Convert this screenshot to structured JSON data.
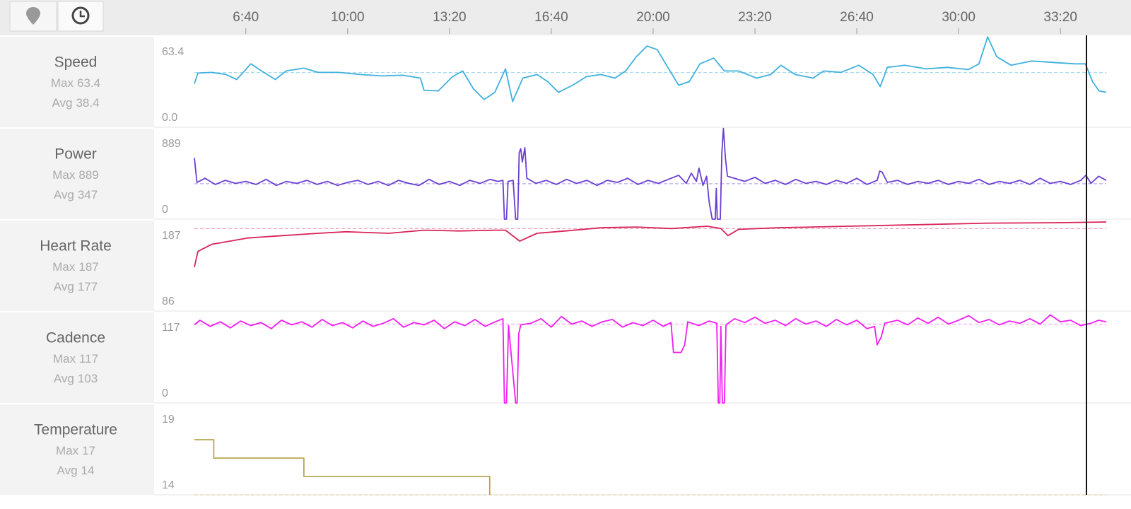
{
  "stat_labels": {
    "max": "Max",
    "avg": "Avg"
  },
  "x_axis": {
    "xlim": [
      299,
      2090
    ],
    "xticks": [
      {
        "value": 400,
        "label": "6:40"
      },
      {
        "value": 600,
        "label": "10:00"
      },
      {
        "value": 800,
        "label": "13:20"
      },
      {
        "value": 1000,
        "label": "16:40"
      },
      {
        "value": 1200,
        "label": "20:00"
      },
      {
        "value": 1400,
        "label": "23:20"
      },
      {
        "value": 1600,
        "label": "26:40"
      },
      {
        "value": 1800,
        "label": "30:00"
      },
      {
        "value": 2000,
        "label": "33:20"
      }
    ]
  },
  "chart_data": [
    {
      "type": "line",
      "title": "Speed",
      "max": 63.4,
      "avg": 38.4,
      "color": "#3fb0de",
      "ylim": [
        0,
        64.5
      ],
      "yticks": [
        {
          "value": 0,
          "label": "0.0"
        },
        63.4
      ],
      "x": [
        299,
        306,
        333,
        361,
        382,
        410,
        431,
        458,
        479,
        514,
        542,
        583,
        625,
        667,
        708,
        743,
        750,
        778,
        806,
        826,
        847,
        868,
        889,
        910,
        924,
        944,
        972,
        993,
        1014,
        1042,
        1069,
        1097,
        1125,
        1146,
        1167,
        1188,
        1208,
        1229,
        1250,
        1271,
        1292,
        1319,
        1340,
        1368,
        1403,
        1431,
        1451,
        1479,
        1514,
        1535,
        1569,
        1604,
        1632,
        1646,
        1660,
        1694,
        1736,
        1778,
        1819,
        1840,
        1857,
        1875,
        1903,
        1944,
        1986,
        2028,
        2049,
        2063,
        2076,
        2090
      ],
      "values": [
        30.5,
        38,
        38.5,
        37,
        33.5,
        44.5,
        39.5,
        33.5,
        39.5,
        41.5,
        38.5,
        38.5,
        37,
        36,
        36.5,
        34.5,
        26,
        25.5,
        35.5,
        39.5,
        27,
        19.5,
        24.5,
        41,
        18,
        34.5,
        37,
        32,
        24.5,
        29.5,
        35.5,
        37,
        34.5,
        39.5,
        49.5,
        57,
        54.5,
        42,
        29.5,
        32,
        44.5,
        48.5,
        39.5,
        39.5,
        34.5,
        37,
        43.5,
        37,
        34.5,
        39.5,
        38.5,
        43.5,
        37,
        28.5,
        42,
        43.5,
        41,
        42,
        40.5,
        44.5,
        63.4,
        49.5,
        43.5,
        46.5,
        45.5,
        44.5,
        44.5,
        32,
        25.5,
        24.5
      ]
    },
    {
      "type": "line",
      "title": "Power",
      "max": 889,
      "avg": 347,
      "color": "#6a3fd0",
      "ylim": [
        0,
        900
      ],
      "yticks": [
        0,
        889
      ],
      "x": [
        299,
        304,
        320,
        340,
        360,
        380,
        400,
        420,
        440,
        460,
        480,
        500,
        520,
        540,
        560,
        580,
        600,
        620,
        640,
        660,
        680,
        700,
        720,
        740,
        760,
        780,
        800,
        820,
        840,
        860,
        880,
        895,
        905,
        908,
        912,
        915,
        925,
        930,
        934,
        937,
        940,
        943,
        948,
        952,
        970,
        990,
        1010,
        1030,
        1050,
        1070,
        1090,
        1110,
        1130,
        1150,
        1170,
        1190,
        1210,
        1230,
        1250,
        1265,
        1275,
        1285,
        1290,
        1298,
        1305,
        1310,
        1316,
        1322,
        1324,
        1326,
        1332,
        1335,
        1338,
        1342,
        1346,
        1360,
        1380,
        1400,
        1420,
        1440,
        1460,
        1480,
        1500,
        1520,
        1540,
        1560,
        1580,
        1600,
        1620,
        1640,
        1645,
        1650,
        1660,
        1680,
        1700,
        1720,
        1740,
        1760,
        1780,
        1800,
        1820,
        1840,
        1860,
        1880,
        1900,
        1920,
        1940,
        1960,
        1980,
        2000,
        2020,
        2040,
        2050,
        2060,
        2075,
        2090
      ],
      "values": [
        600,
        360,
        400,
        340,
        380,
        350,
        370,
        340,
        390,
        330,
        370,
        350,
        380,
        340,
        370,
        330,
        360,
        380,
        340,
        370,
        330,
        380,
        350,
        330,
        390,
        340,
        370,
        330,
        380,
        350,
        390,
        370,
        380,
        0,
        0,
        370,
        380,
        0,
        0,
        650,
        690,
        560,
        700,
        400,
        350,
        380,
        340,
        390,
        350,
        380,
        330,
        380,
        360,
        400,
        340,
        380,
        350,
        390,
        430,
        350,
        450,
        370,
        500,
        330,
        420,
        170,
        0,
        0,
        300,
        0,
        0,
        650,
        889,
        600,
        420,
        400,
        370,
        410,
        350,
        380,
        340,
        390,
        350,
        370,
        340,
        380,
        350,
        400,
        340,
        380,
        470,
        460,
        360,
        380,
        340,
        370,
        350,
        380,
        340,
        370,
        350,
        390,
        340,
        370,
        350,
        380,
        340,
        400,
        350,
        370,
        340,
        380,
        430,
        350,
        420,
        380
      ]
    },
    {
      "type": "line",
      "title": "Heart Rate",
      "max": 187,
      "avg": 177,
      "color": "#d8245a",
      "ylim": [
        72,
        189
      ],
      "yticks": [
        86,
        187
      ],
      "x": [
        299,
        306,
        333,
        403,
        472,
        542,
        597,
        681,
        750,
        819,
        889,
        910,
        938,
        972,
        1028,
        1097,
        1167,
        1236,
        1306,
        1333,
        1347,
        1368,
        1444,
        1583,
        1722,
        1861,
        2000,
        2090
      ],
      "values": [
        128,
        148,
        157,
        165,
        168,
        171,
        173,
        171,
        175,
        174,
        175,
        175,
        161,
        171,
        174,
        178,
        179,
        177,
        180,
        177,
        168,
        176,
        178,
        180,
        182,
        184,
        184.5,
        185.4
      ]
    },
    {
      "type": "line",
      "title": "Cadence",
      "max": 117,
      "avg": 103,
      "color": "#f01ef0",
      "ylim": [
        0,
        120
      ],
      "yticks": [
        0,
        117
      ],
      "x": [
        299,
        310,
        330,
        350,
        370,
        390,
        410,
        430,
        450,
        470,
        490,
        510,
        530,
        550,
        570,
        590,
        610,
        630,
        650,
        670,
        690,
        710,
        730,
        750,
        770,
        790,
        810,
        830,
        850,
        870,
        890,
        905,
        908,
        912,
        916,
        930,
        933,
        936,
        940,
        960,
        980,
        1000,
        1020,
        1040,
        1060,
        1080,
        1100,
        1120,
        1140,
        1160,
        1180,
        1200,
        1220,
        1235,
        1240,
        1255,
        1262,
        1268,
        1290,
        1310,
        1325,
        1328,
        1331,
        1333,
        1336,
        1340,
        1343,
        1360,
        1380,
        1400,
        1420,
        1440,
        1460,
        1480,
        1500,
        1520,
        1540,
        1560,
        1580,
        1600,
        1620,
        1635,
        1640,
        1648,
        1655,
        1680,
        1700,
        1720,
        1740,
        1760,
        1780,
        1800,
        1820,
        1840,
        1860,
        1880,
        1900,
        1920,
        1940,
        1960,
        1980,
        2000,
        2020,
        2040,
        2060,
        2075,
        2090
      ],
      "values": [
        102,
        108,
        100,
        106,
        98,
        107,
        101,
        105,
        97,
        108,
        102,
        106,
        99,
        109,
        101,
        105,
        98,
        107,
        100,
        104,
        110,
        99,
        105,
        102,
        108,
        97,
        106,
        101,
        109,
        100,
        106,
        110,
        0,
        0,
        101,
        0,
        0,
        90,
        102,
        104,
        110,
        99,
        113,
        103,
        107,
        100,
        106,
        109,
        99,
        105,
        101,
        108,
        100,
        105,
        66,
        66,
        76,
        106,
        101,
        107,
        104,
        0,
        0,
        100,
        0,
        0,
        102,
        110,
        105,
        112,
        104,
        108,
        101,
        110,
        103,
        107,
        100,
        109,
        102,
        108,
        97,
        100,
        76,
        86,
        104,
        108,
        102,
        111,
        104,
        112,
        103,
        108,
        114,
        105,
        109,
        102,
        107,
        104,
        110,
        103,
        115,
        106,
        108,
        101,
        104,
        108,
        106
      ]
    },
    {
      "type": "line",
      "title": "Temperature",
      "max": 17,
      "avg": 14,
      "color": "#b8a850",
      "ylim": [
        14,
        19
      ],
      "yticks": [
        14,
        19
      ],
      "x": [
        299,
        337,
        337,
        514,
        514,
        879,
        879
      ],
      "values": [
        17,
        17,
        16,
        16,
        15,
        15,
        14
      ]
    }
  ]
}
